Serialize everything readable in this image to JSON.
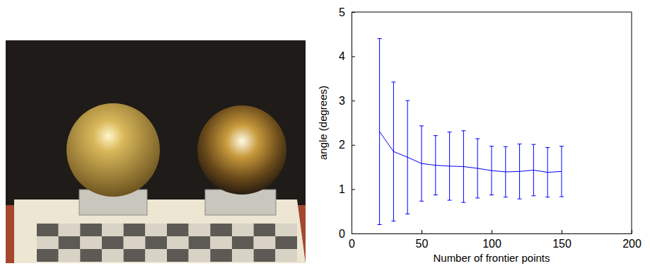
{
  "chart_data": {
    "type": "line",
    "x": [
      20,
      30,
      40,
      50,
      60,
      70,
      80,
      90,
      100,
      110,
      120,
      130,
      140,
      150
    ],
    "values": [
      2.3,
      1.85,
      1.72,
      1.58,
      1.54,
      1.52,
      1.51,
      1.47,
      1.42,
      1.39,
      1.4,
      1.43,
      1.38,
      1.4
    ],
    "errors": [
      2.1,
      1.57,
      1.28,
      0.85,
      0.67,
      0.77,
      0.81,
      0.67,
      0.55,
      0.57,
      0.62,
      0.58,
      0.56,
      0.57
    ],
    "color": "#0000ff",
    "x_label": "Number of frontier points",
    "y_label": "angle (degrees)",
    "xlim": [
      0,
      200
    ],
    "xticks": [
      0,
      50,
      100,
      150,
      200
    ],
    "ylim": [
      0,
      5
    ],
    "yticks": [
      0,
      1,
      2,
      3,
      4,
      5
    ]
  }
}
